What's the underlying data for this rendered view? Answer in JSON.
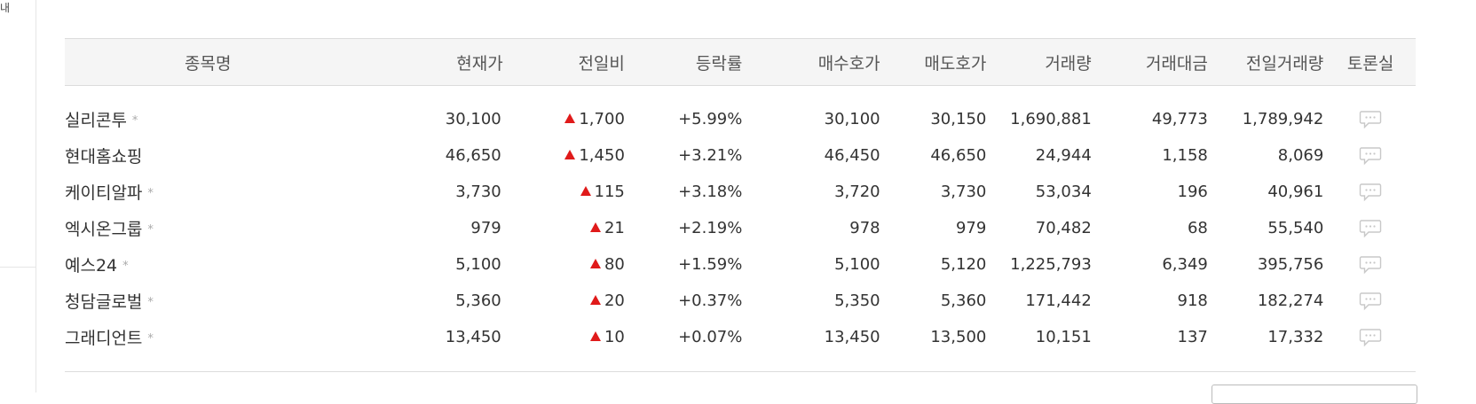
{
  "sidebar": {
    "glyph": "내"
  },
  "table": {
    "headers": [
      "종목명",
      "현재가",
      "전일비",
      "등락률",
      "매수호가",
      "매도호가",
      "거래량",
      "거래대금",
      "전일거래량",
      "토론실"
    ],
    "rows": [
      {
        "name": "실리콘투",
        "star": "*",
        "price": "30,100",
        "change": "1,700",
        "rate": "+5.99%",
        "bid": "30,100",
        "ask": "30,150",
        "volume": "1,690,881",
        "amount": "49,773",
        "prev_volume": "1,789,942"
      },
      {
        "name": "현대홈쇼핑",
        "star": "",
        "price": "46,650",
        "change": "1,450",
        "rate": "+3.21%",
        "bid": "46,450",
        "ask": "46,650",
        "volume": "24,944",
        "amount": "1,158",
        "prev_volume": "8,069"
      },
      {
        "name": "케이티알파",
        "star": "*",
        "price": "3,730",
        "change": "115",
        "rate": "+3.18%",
        "bid": "3,720",
        "ask": "3,730",
        "volume": "53,034",
        "amount": "196",
        "prev_volume": "40,961"
      },
      {
        "name": "엑시온그룹",
        "star": "*",
        "price": "979",
        "change": "21",
        "rate": "+2.19%",
        "bid": "978",
        "ask": "979",
        "volume": "70,482",
        "amount": "68",
        "prev_volume": "55,540"
      },
      {
        "name": "예스24",
        "star": "*",
        "price": "5,100",
        "change": "80",
        "rate": "+1.59%",
        "bid": "5,100",
        "ask": "5,120",
        "volume": "1,225,793",
        "amount": "6,349",
        "prev_volume": "395,756"
      },
      {
        "name": "청담글로벌",
        "star": "*",
        "price": "5,360",
        "change": "20",
        "rate": "+0.37%",
        "bid": "5,350",
        "ask": "5,360",
        "volume": "171,442",
        "amount": "918",
        "prev_volume": "182,274"
      },
      {
        "name": "그래디언트",
        "star": "*",
        "price": "13,450",
        "change": "10",
        "rate": "+0.07%",
        "bid": "13,450",
        "ask": "13,500",
        "volume": "10,151",
        "amount": "137",
        "prev_volume": "17,332"
      }
    ]
  },
  "colors": {
    "up": "#e01a1a",
    "header_bg": "#f5f5f5",
    "icon": "#c8c8c8"
  },
  "icons": {
    "talk": "speech-bubble-icon",
    "up": "triangle-up-icon"
  }
}
